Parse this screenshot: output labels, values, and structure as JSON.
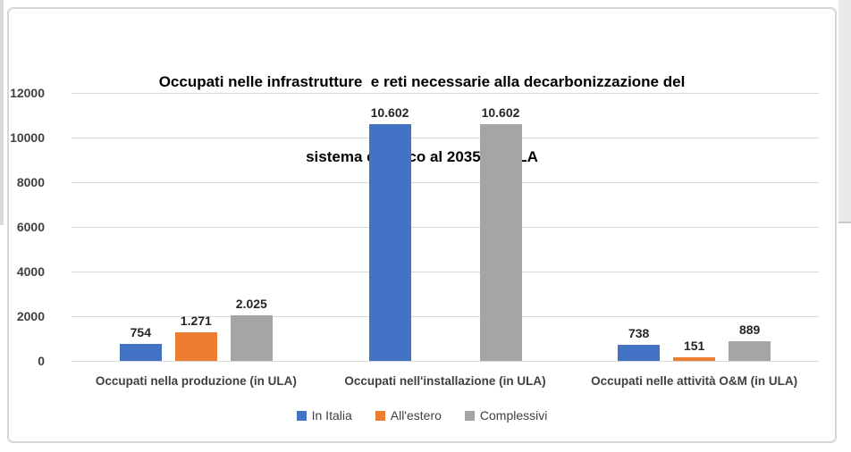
{
  "window": {
    "background": "#ffffff",
    "card_border_color": "#d7d7d7",
    "page_edge_color_left": "#d9d9d9",
    "page_edge_color_right": "#e9e9ec"
  },
  "chart": {
    "title_line1": "Occupati nelle infrastrutture  e reti necessarie alla decarbonizzazione del",
    "title_line2": "sistema elettrico al 2035, in ULA"
  },
  "chart_data": {
    "type": "bar",
    "title": "Occupati nelle infrastrutture e reti necessarie alla decarbonizzazione del sistema elettrico al 2035, in ULA",
    "xlabel": "",
    "ylabel": "",
    "categories": [
      "Occupati nella produzione (in ULA)",
      "Occupati nell'installazione (in ULA)",
      "Occupati nelle attività O&M (in ULA)"
    ],
    "series": [
      {
        "name": "In Italia",
        "color": "#4472C4",
        "values": [
          754,
          10602,
          738
        ],
        "labels": [
          "754",
          "10.602",
          "738"
        ]
      },
      {
        "name": "All'estero",
        "color": "#ED7D31",
        "values": [
          1271,
          0,
          151
        ],
        "labels": [
          "1.271",
          "",
          "151"
        ]
      },
      {
        "name": "Complessivi",
        "color": "#A5A5A5",
        "values": [
          2025,
          10602,
          889
        ],
        "labels": [
          "2.025",
          "10.602",
          "889"
        ]
      }
    ],
    "ylim": [
      0,
      12000
    ],
    "yticks": [
      0,
      2000,
      4000,
      6000,
      8000,
      10000,
      12000
    ],
    "ytick_labels": [
      "0",
      "2000",
      "4000",
      "6000",
      "8000",
      "10000",
      "12000"
    ],
    "grid": true,
    "gridline_color": "#d9d9d9",
    "axis_label_color": "#404040",
    "data_label_color": "#262626",
    "legend_position": "bottom"
  }
}
